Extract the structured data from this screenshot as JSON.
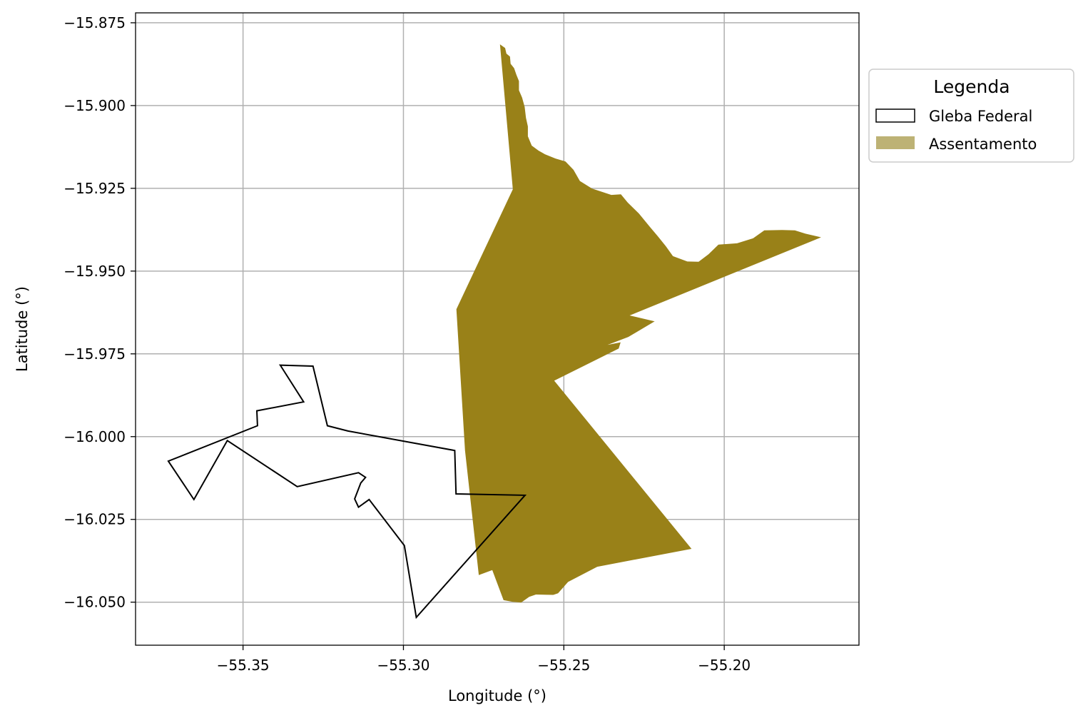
{
  "chart_data": {
    "type": "map",
    "xlabel": "Longitude (°)",
    "ylabel": "Latitude (°)",
    "xlim": [
      -55.3835,
      -55.158
    ],
    "ylim": [
      -16.063,
      -15.872
    ],
    "x_ticks": [
      -55.35,
      -55.3,
      -55.25,
      -55.2
    ],
    "x_tick_labels": [
      "−55.35",
      "−55.30",
      "−55.25",
      "−55.20"
    ],
    "y_ticks": [
      -15.875,
      -15.9,
      -15.925,
      -15.95,
      -15.975,
      -16.0,
      -16.025,
      -16.05
    ],
    "y_tick_labels": [
      "−15.875",
      "−15.900",
      "−15.925",
      "−15.950",
      "−15.975",
      "−16.000",
      "−16.025",
      "−16.050"
    ],
    "grid": true,
    "legend": {
      "title": "Legenda",
      "placement": "outside-right-top",
      "entries": [
        "Gleba Federal",
        "Assentamento"
      ]
    },
    "colors": {
      "assentamento_fill": "#998118",
      "assentamento_legend": "#bdb275",
      "gleba_edge": "#000000",
      "grid": "#b0b0b0"
    },
    "series": [
      {
        "name": "Assentamento",
        "style": "filled",
        "points": [
          [
            -55.2699,
            -15.8815
          ],
          [
            -55.2683,
            -15.8826
          ],
          [
            -55.2679,
            -15.8843
          ],
          [
            -55.2668,
            -15.8852
          ],
          [
            -55.2666,
            -15.8874
          ],
          [
            -55.2655,
            -15.8887
          ],
          [
            -55.2648,
            -15.8907
          ],
          [
            -55.264,
            -15.8926
          ],
          [
            -55.264,
            -15.8954
          ],
          [
            -55.263,
            -15.8976
          ],
          [
            -55.2622,
            -15.9004
          ],
          [
            -55.2618,
            -15.9037
          ],
          [
            -55.2612,
            -15.9063
          ],
          [
            -55.2612,
            -15.9093
          ],
          [
            -55.26,
            -15.9121
          ],
          [
            -55.2579,
            -15.9136
          ],
          [
            -55.2559,
            -15.9147
          ],
          [
            -55.2526,
            -15.916
          ],
          [
            -55.2495,
            -15.9169
          ],
          [
            -55.247,
            -15.9194
          ],
          [
            -55.245,
            -15.9228
          ],
          [
            -55.2412,
            -15.9251
          ],
          [
            -55.2383,
            -15.926
          ],
          [
            -55.2352,
            -15.927
          ],
          [
            -55.2322,
            -15.9268
          ],
          [
            -55.2301,
            -15.9293
          ],
          [
            -55.2266,
            -15.9326
          ],
          [
            -55.2232,
            -15.9366
          ],
          [
            -55.2207,
            -15.9395
          ],
          [
            -55.2182,
            -15.9425
          ],
          [
            -55.216,
            -15.9455
          ],
          [
            -55.2115,
            -15.9471
          ],
          [
            -55.208,
            -15.9472
          ],
          [
            -55.2049,
            -15.9449
          ],
          [
            -55.2018,
            -15.942
          ],
          [
            -55.196,
            -15.9416
          ],
          [
            -55.191,
            -15.9401
          ],
          [
            -55.1875,
            -15.9377
          ],
          [
            -55.182,
            -15.9376
          ],
          [
            -55.178,
            -15.9377
          ],
          [
            -55.1747,
            -15.9387
          ],
          [
            -55.1698,
            -15.9398
          ],
          [
            -55.2295,
            -15.9634
          ],
          [
            -55.2217,
            -15.9652
          ],
          [
            -55.2299,
            -15.9699
          ],
          [
            -55.2364,
            -15.9723
          ],
          [
            -55.2323,
            -15.9715
          ],
          [
            -55.2329,
            -15.9734
          ],
          [
            -55.253,
            -15.9831
          ],
          [
            -55.2102,
            -16.0339
          ],
          [
            -55.2396,
            -16.0393
          ],
          [
            -55.2487,
            -16.0439
          ],
          [
            -55.2518,
            -16.0473
          ],
          [
            -55.2533,
            -16.0478
          ],
          [
            -55.2587,
            -16.0477
          ],
          [
            -55.2608,
            -16.0484
          ],
          [
            -55.2633,
            -16.0501
          ],
          [
            -55.2659,
            -16.0499
          ],
          [
            -55.2688,
            -16.0494
          ],
          [
            -55.2723,
            -16.0403
          ],
          [
            -55.2765,
            -16.0418
          ],
          [
            -55.2808,
            -16.0042
          ],
          [
            -55.2835,
            -15.9615
          ],
          [
            -55.2659,
            -15.9253
          ]
        ]
      },
      {
        "name": "Gleba Federal",
        "style": "outline",
        "points": [
          [
            -55.3384,
            -15.9784
          ],
          [
            -55.3282,
            -15.9787
          ],
          [
            -55.3237,
            -15.9967
          ],
          [
            -55.3173,
            -15.9983
          ],
          [
            -55.284,
            -16.0042
          ],
          [
            -55.2836,
            -16.0173
          ],
          [
            -55.2621,
            -16.0177
          ],
          [
            -55.296,
            -16.0546
          ],
          [
            -55.2997,
            -16.0329
          ],
          [
            -55.3107,
            -16.019
          ],
          [
            -55.314,
            -16.0213
          ],
          [
            -55.3152,
            -16.0188
          ],
          [
            -55.3133,
            -16.014
          ],
          [
            -55.3118,
            -16.0123
          ],
          [
            -55.314,
            -16.0109
          ],
          [
            -55.3331,
            -16.0151
          ],
          [
            -55.3549,
            -16.0012
          ],
          [
            -55.3653,
            -16.019
          ],
          [
            -55.3733,
            -16.0074
          ],
          [
            -55.3455,
            -15.9967
          ],
          [
            -55.3457,
            -15.9922
          ],
          [
            -55.3311,
            -15.9895
          ]
        ]
      }
    ]
  }
}
